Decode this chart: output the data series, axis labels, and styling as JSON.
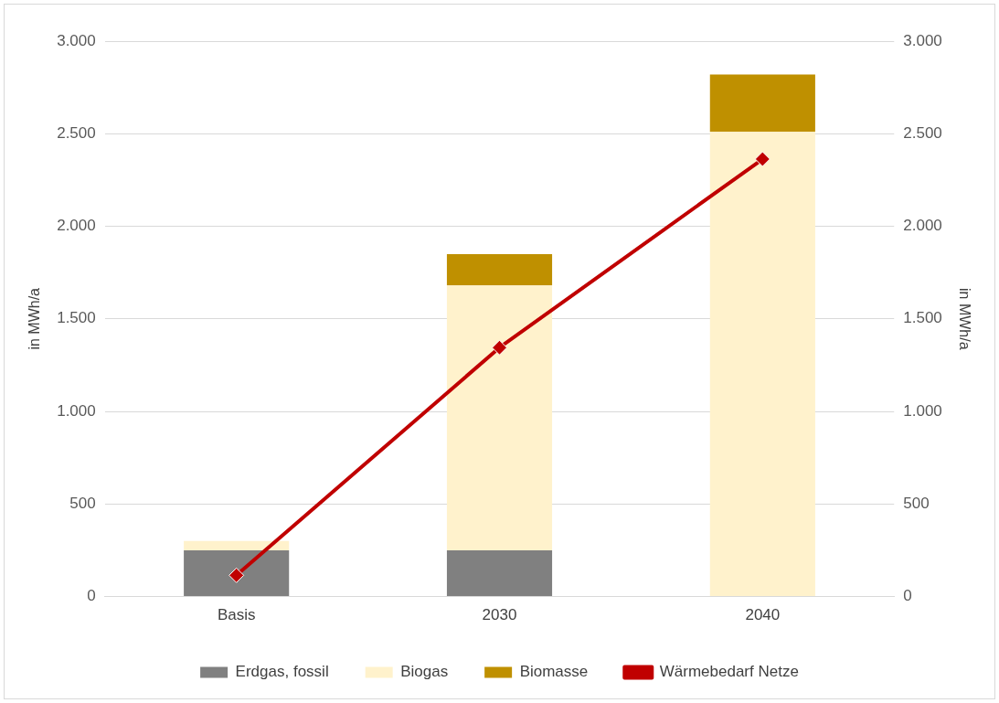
{
  "chart_data": {
    "type": "bar",
    "stacked": true,
    "categories": [
      "Basis",
      "2030",
      "2040"
    ],
    "series": [
      {
        "name": "Erdgas, fossil",
        "color": "#808080",
        "values": [
          250,
          250,
          0
        ]
      },
      {
        "name": "Biogas",
        "color": "#fff2cc",
        "values": [
          50,
          1430,
          2510
        ]
      },
      {
        "name": "Biomasse",
        "color": "#bf9000",
        "values": [
          0,
          170,
          310
        ]
      },
      {
        "name": "Wärmebedarf Netze",
        "type": "line",
        "axis": "y2",
        "color": "#c00000",
        "marker": "diamond",
        "values": [
          115,
          1345,
          2363
        ]
      }
    ],
    "ylabel": "in MWh/a",
    "y2label": "in MWh/a",
    "ylim": [
      0,
      3000
    ],
    "yticks": [
      0,
      {
        "value": 500,
        "label": "500"
      },
      {
        "value": 1000,
        "label": "1.000"
      },
      {
        "value": 1500,
        "label": "1.500"
      },
      {
        "value": 2000,
        "label": "2.000"
      },
      {
        "value": 2500,
        "label": "2.500"
      },
      {
        "value": 3000,
        "label": "3.000"
      }
    ],
    "y2lim": [
      0,
      3000
    ],
    "y2ticks": [
      0,
      {
        "value": 500,
        "label": "500"
      },
      {
        "value": 1000,
        "label": "1.000"
      },
      {
        "value": 1500,
        "label": "1.500"
      },
      {
        "value": 2000,
        "label": "2.000"
      },
      {
        "value": 2500,
        "label": "2.500"
      },
      {
        "value": 3000,
        "label": "3.000"
      }
    ],
    "grid": "y",
    "legend": "bottom"
  }
}
